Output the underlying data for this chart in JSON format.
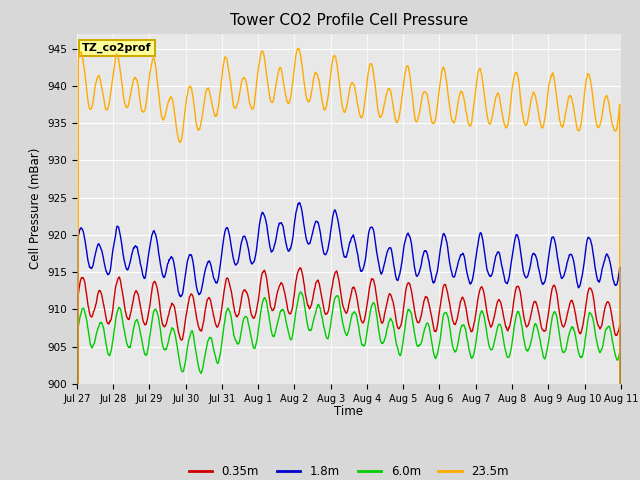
{
  "title": "Tower CO2 Profile Cell Pressure",
  "ylabel": "Cell Pressure (mBar)",
  "xlabel": "Time",
  "ylim": [
    900,
    947
  ],
  "yticks": [
    900,
    905,
    910,
    915,
    920,
    925,
    930,
    935,
    940,
    945
  ],
  "bg_color": "#e8e8e8",
  "fig_color": "#d8d8d8",
  "annotation_text": "TZ_co2prof",
  "annotation_bg": "#ffff99",
  "annotation_border": "#ccaa00",
  "color_red": "#cc0000",
  "color_blue": "#0000cc",
  "color_green": "#00cc00",
  "color_orange": "#ffaa00",
  "xtick_positions": [
    0,
    1,
    2,
    3,
    4,
    5,
    6,
    7,
    8,
    9,
    10,
    11,
    12,
    13,
    14,
    15
  ],
  "xtick_labels": [
    "Jul 27",
    "Jul 28",
    "Jul 29",
    "Jul 30",
    "Jul 31",
    "Aug 1",
    "Aug 2",
    "Aug 3",
    "Aug 4",
    "Aug 5",
    "Aug 6",
    "Aug 7",
    "Aug 8",
    "Aug 9",
    "Aug 10",
    "Aug 11"
  ]
}
